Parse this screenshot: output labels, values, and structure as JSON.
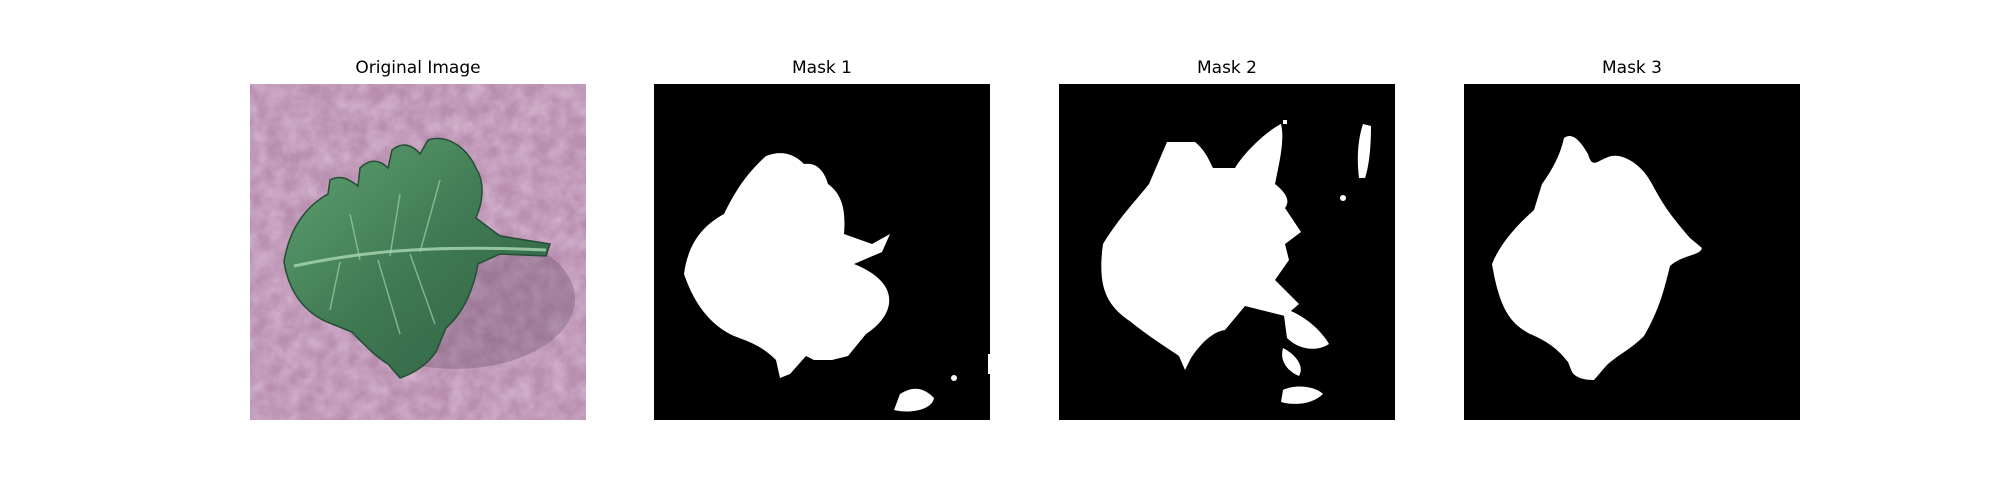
{
  "figure": {
    "panels": [
      {
        "title": "Original Image",
        "content": "leaf-photo"
      },
      {
        "title": "Mask 1",
        "content": "binary-mask"
      },
      {
        "title": "Mask 2",
        "content": "binary-mask"
      },
      {
        "title": "Mask 3",
        "content": "binary-mask"
      }
    ],
    "colors": {
      "background": "#b98fb0",
      "leaf": "#3f7a52",
      "leaf_vein": "#9fcdaa",
      "mask_bg": "#000000",
      "mask_fg": "#ffffff"
    }
  }
}
